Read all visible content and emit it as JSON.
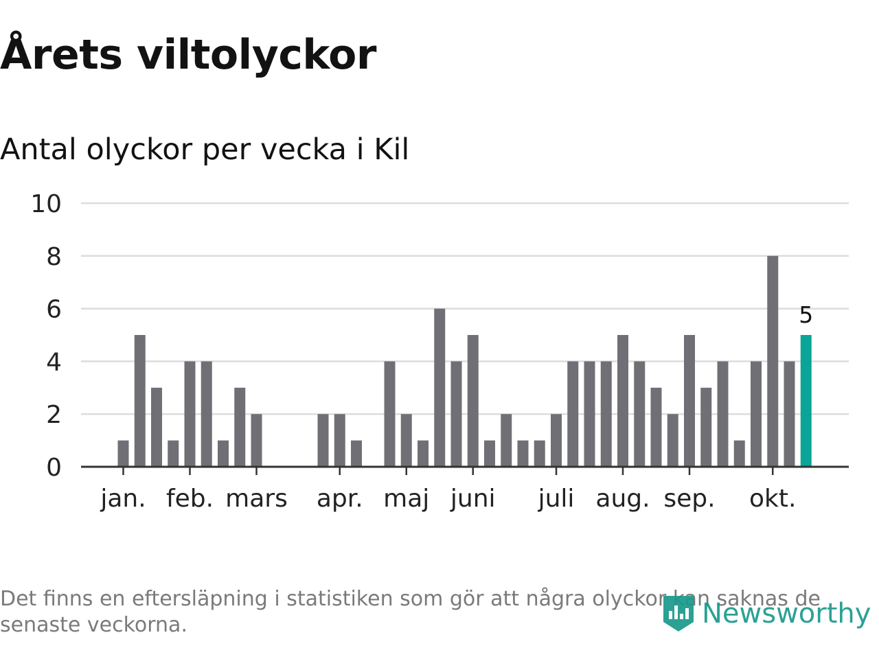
{
  "title": "Årets viltolyckor",
  "subtitle": "Antal olyckor per vecka i Kil",
  "footnote": "Det finns en eftersläpning i statistiken som gör att några olyckor kan saknas de senaste veckorna.",
  "logo": {
    "text": "Newsworthy",
    "icon": "newsworthy-logo-icon"
  },
  "colors": {
    "bar": "#706f75",
    "highlight": "#0aa596",
    "grid": "#dcdcdc",
    "axis": "#333333",
    "tick_text": "#222222",
    "logo": "#1a9a8c"
  },
  "chart_data": {
    "type": "bar",
    "title": "Antal olyckor per vecka i Kil",
    "xlabel": "",
    "ylabel": "",
    "ylim": [
      0,
      10
    ],
    "yticks": [
      0,
      2,
      4,
      6,
      8,
      10
    ],
    "grid": true,
    "weeks": [
      1,
      2,
      3,
      4,
      5,
      6,
      7,
      8,
      9,
      10,
      11,
      12,
      13,
      14,
      15,
      16,
      17,
      18,
      19,
      20,
      21,
      22,
      23,
      24,
      25,
      26,
      27,
      28,
      29,
      30,
      31,
      32,
      33,
      34,
      35,
      36,
      37,
      38,
      39,
      40,
      41,
      42
    ],
    "values": [
      1,
      5,
      3,
      1,
      4,
      4,
      1,
      3,
      2,
      0,
      0,
      0,
      2,
      2,
      1,
      0,
      4,
      2,
      1,
      6,
      4,
      5,
      1,
      2,
      1,
      1,
      2,
      4,
      4,
      4,
      5,
      4,
      3,
      2,
      5,
      3,
      4,
      1,
      4,
      8,
      4,
      5
    ],
    "month_labels": [
      {
        "label": "jan.",
        "week": 1
      },
      {
        "label": "feb.",
        "week": 5
      },
      {
        "label": "mars",
        "week": 9
      },
      {
        "label": "apr.",
        "week": 14
      },
      {
        "label": "maj",
        "week": 18
      },
      {
        "label": "juni",
        "week": 22
      },
      {
        "label": "juli",
        "week": 27
      },
      {
        "label": "aug.",
        "week": 31
      },
      {
        "label": "sep.",
        "week": 35
      },
      {
        "label": "okt.",
        "week": 40
      }
    ],
    "highlight_last": true,
    "last_value_label": "5"
  }
}
